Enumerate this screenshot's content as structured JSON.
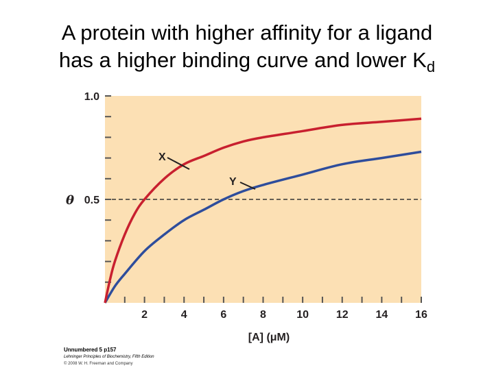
{
  "title": {
    "line1": "A protein with higher affinity for a ligand",
    "line2_main": "has a higher binding curve and lower K",
    "line2_sub": "d"
  },
  "chart_data": {
    "type": "line",
    "x_label": "[A] (μM)",
    "y_label_symbol": "θ",
    "x_range": [
      0,
      16
    ],
    "y_range": [
      0,
      1.0
    ],
    "x_ticks": [
      "2",
      "4",
      "6",
      "8",
      "10",
      "12",
      "14",
      "16"
    ],
    "x_tick_values": [
      2,
      4,
      6,
      8,
      10,
      12,
      14,
      16
    ],
    "y_ticks": [
      "1.0",
      "0.5"
    ],
    "y_tick_values": [
      1.0,
      0.5
    ],
    "y_minor_tick_values": [
      0.1,
      0.2,
      0.3,
      0.4,
      0.6,
      0.7,
      0.8,
      0.9
    ],
    "reference_line": {
      "y": 0.5,
      "style": "dashed"
    },
    "series": [
      {
        "name": "X",
        "color": "#c8202f",
        "x": [
          0,
          0.25,
          0.5,
          1,
          1.5,
          2,
          3,
          4,
          5,
          6,
          7,
          8,
          10,
          12,
          14,
          16
        ],
        "y": [
          0,
          0.11,
          0.2,
          0.33,
          0.43,
          0.5,
          0.6,
          0.67,
          0.71,
          0.75,
          0.78,
          0.8,
          0.83,
          0.86,
          0.875,
          0.89
        ]
      },
      {
        "name": "Y",
        "color": "#2e4d9c",
        "x": [
          0,
          0.5,
          1,
          2,
          3,
          4,
          5,
          6,
          7,
          8,
          10,
          12,
          14,
          16
        ],
        "y": [
          0,
          0.08,
          0.14,
          0.25,
          0.33,
          0.4,
          0.45,
          0.5,
          0.54,
          0.57,
          0.62,
          0.67,
          0.7,
          0.73
        ]
      }
    ],
    "background_color": "#fce0b4"
  },
  "caption": {
    "line1": "Unnumbered 5 p157",
    "line2": "Lehninger Principles of Biochemistry, Fifth Edition",
    "line3": "© 2008 W. H. Freeman and Company"
  }
}
